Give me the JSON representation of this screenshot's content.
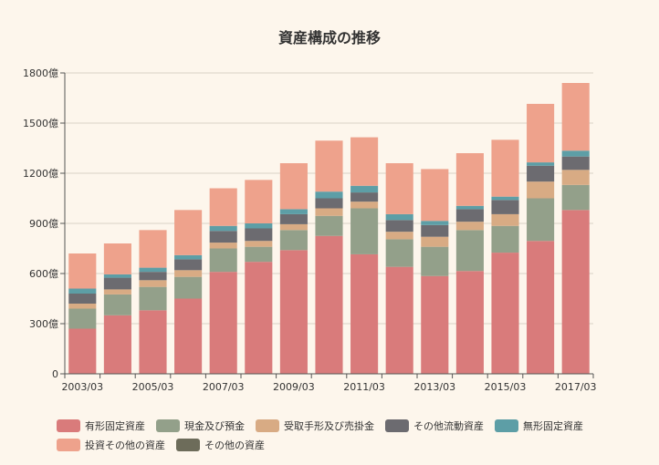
{
  "chart_data": {
    "type": "bar",
    "stacked": true,
    "title": "資産構成の推移",
    "xlabel": "",
    "ylabel": "",
    "ylim": [
      0,
      1800
    ],
    "y_ticks": [
      "0",
      "300億",
      "600億",
      "900億",
      "1200億",
      "1500億",
      "1800億"
    ],
    "y_tick_values": [
      0,
      300,
      600,
      900,
      1200,
      1500,
      1800
    ],
    "categories": [
      "2003/03",
      "2004/03",
      "2005/03",
      "2006/03",
      "2007/03",
      "2008/03",
      "2009/03",
      "2010/03",
      "2011/03",
      "2012/03",
      "2013/03",
      "2014/03",
      "2015/03",
      "2016/03",
      "2017/03"
    ],
    "x_tick_labels_shown": [
      "2003/03",
      "2005/03",
      "2007/03",
      "2009/03",
      "2011/03",
      "2013/03",
      "2015/03",
      "2017/03"
    ],
    "grid": true,
    "legend_position": "bottom",
    "series": [
      {
        "name": "有形固定資産",
        "color": "#d97b7b",
        "values": [
          270,
          350,
          380,
          450,
          610,
          670,
          740,
          825,
          715,
          640,
          585,
          615,
          725,
          795,
          980
        ]
      },
      {
        "name": "現金及び預金",
        "color": "#93a08a",
        "values": [
          120,
          125,
          140,
          130,
          140,
          90,
          120,
          120,
          275,
          165,
          175,
          245,
          160,
          255,
          150
        ]
      },
      {
        "name": "受取手形及び売掛金",
        "color": "#d8ab84",
        "values": [
          30,
          30,
          40,
          40,
          35,
          35,
          35,
          45,
          40,
          45,
          60,
          50,
          70,
          100,
          90
        ]
      },
      {
        "name": "その他流動資産",
        "color": "#6c6b70",
        "values": [
          60,
          70,
          50,
          65,
          70,
          75,
          60,
          60,
          55,
          70,
          70,
          75,
          85,
          95,
          80
        ]
      },
      {
        "name": "無形固定資産",
        "color": "#5d9ea6",
        "values": [
          30,
          20,
          25,
          25,
          30,
          30,
          30,
          40,
          40,
          35,
          25,
          20,
          20,
          20,
          35
        ]
      },
      {
        "name": "投資その他の資産",
        "color": "#eea28c",
        "values": [
          210,
          185,
          225,
          270,
          225,
          260,
          275,
          305,
          290,
          305,
          310,
          315,
          340,
          350,
          405
        ]
      },
      {
        "name": "その他の資産",
        "color": "#6d6c5a",
        "values": [
          0,
          0,
          0,
          0,
          0,
          0,
          0,
          0,
          0,
          0,
          0,
          0,
          0,
          0,
          0
        ]
      }
    ]
  }
}
